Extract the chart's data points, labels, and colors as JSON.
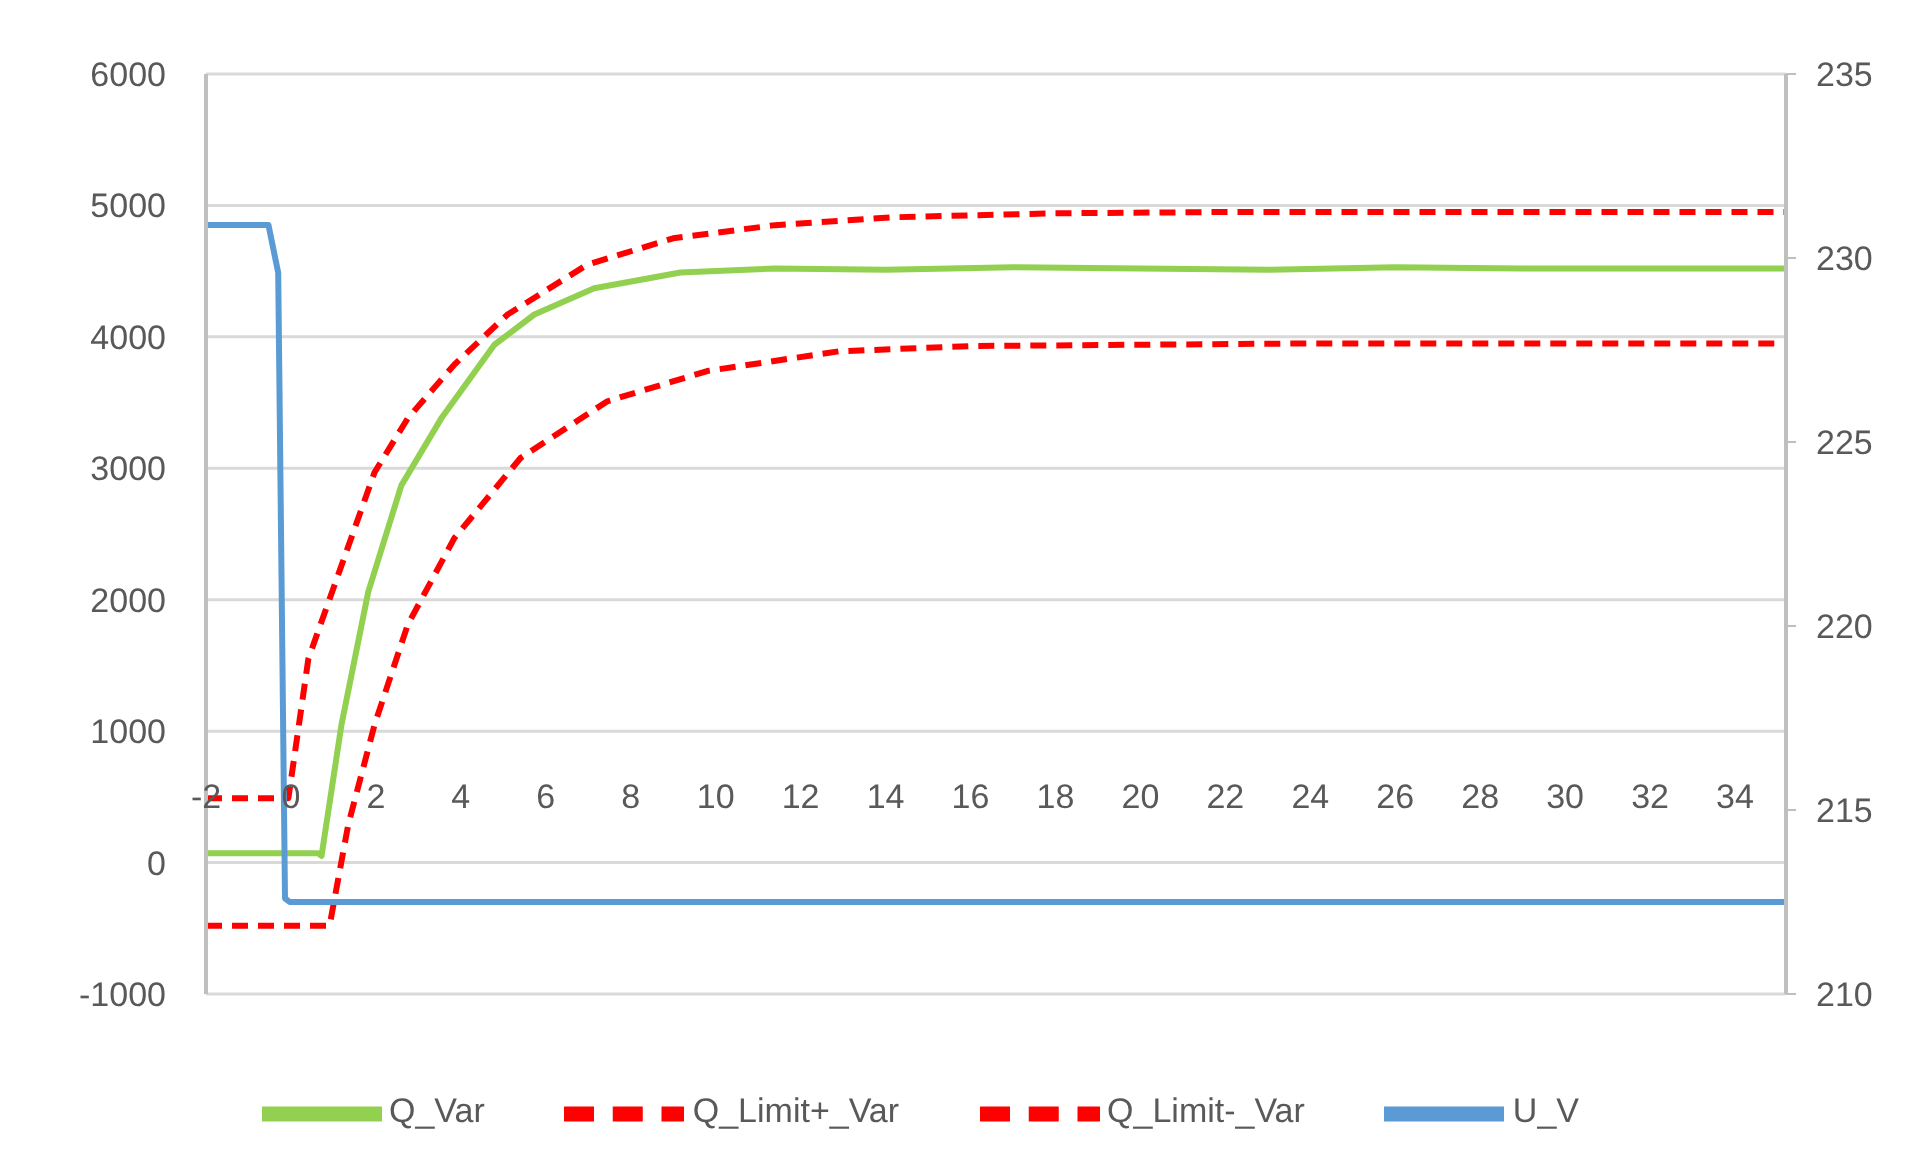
{
  "chart_data": {
    "type": "line",
    "xlim": [
      -2,
      35.2
    ],
    "xticks": [
      -2,
      0,
      2,
      4,
      6,
      8,
      10,
      12,
      14,
      16,
      18,
      20,
      22,
      24,
      26,
      28,
      30,
      32,
      34
    ],
    "ylim": [
      -1000,
      6000
    ],
    "yticks": [
      -1000,
      0,
      1000,
      2000,
      3000,
      4000,
      5000,
      6000
    ],
    "y2lim": [
      210,
      235
    ],
    "y2ticks": [
      210,
      215,
      220,
      225,
      230,
      235
    ],
    "grid": "y",
    "legend": "bottom",
    "marker": "none",
    "series": [
      {
        "name": "Q_Var",
        "color": "#92d050",
        "line_style": "solid",
        "x": [
          -2,
          0.64,
          0.72,
          1.19,
          1.82,
          2.6,
          3.54,
          4.79,
          5.73,
          7.14,
          9.17,
          11.4,
          14,
          17,
          20,
          23,
          26,
          29,
          32,
          35.2
        ],
        "values": [
          70,
          70,
          50,
          1050,
          2060,
          2870,
          3380,
          3940,
          4170,
          4370,
          4490,
          4520,
          4510,
          4530,
          4520,
          4510,
          4530,
          4520,
          4520,
          4520
        ]
      },
      {
        "name": "Q_Limit+_Var",
        "color": "#ff0000",
        "line_style": "dashed",
        "x": [
          -2,
          -0.06,
          0.41,
          1.19,
          1.97,
          2.75,
          3.85,
          5.1,
          6.98,
          9,
          11.4,
          14.2,
          18,
          22,
          35.2
        ],
        "values": [
          490,
          490,
          1550,
          2260,
          2970,
          3380,
          3790,
          4170,
          4550,
          4750,
          4850,
          4910,
          4940,
          4950,
          4950
        ]
      },
      {
        "name": "Q_Limit-_Var",
        "color": "#ff0000",
        "line_style": "dashed",
        "x": [
          -2,
          0.91,
          1.35,
          1.97,
          2.75,
          3.85,
          5.41,
          7.45,
          9.8,
          12.9,
          16,
          20,
          24,
          35.2
        ],
        "values": [
          -480,
          -480,
          290,
          1050,
          1810,
          2470,
          3080,
          3510,
          3740,
          3890,
          3930,
          3940,
          3950,
          3950
        ]
      },
      {
        "name": "U_V",
        "color": "#5b9bd5",
        "line_style": "solid",
        "axis": "y2",
        "x": [
          -2,
          -0.53,
          -0.3,
          -0.14,
          -0.03,
          35.2
        ],
        "values": [
          230.9,
          230.9,
          229.6,
          212.6,
          212.5,
          212.5
        ]
      }
    ]
  }
}
